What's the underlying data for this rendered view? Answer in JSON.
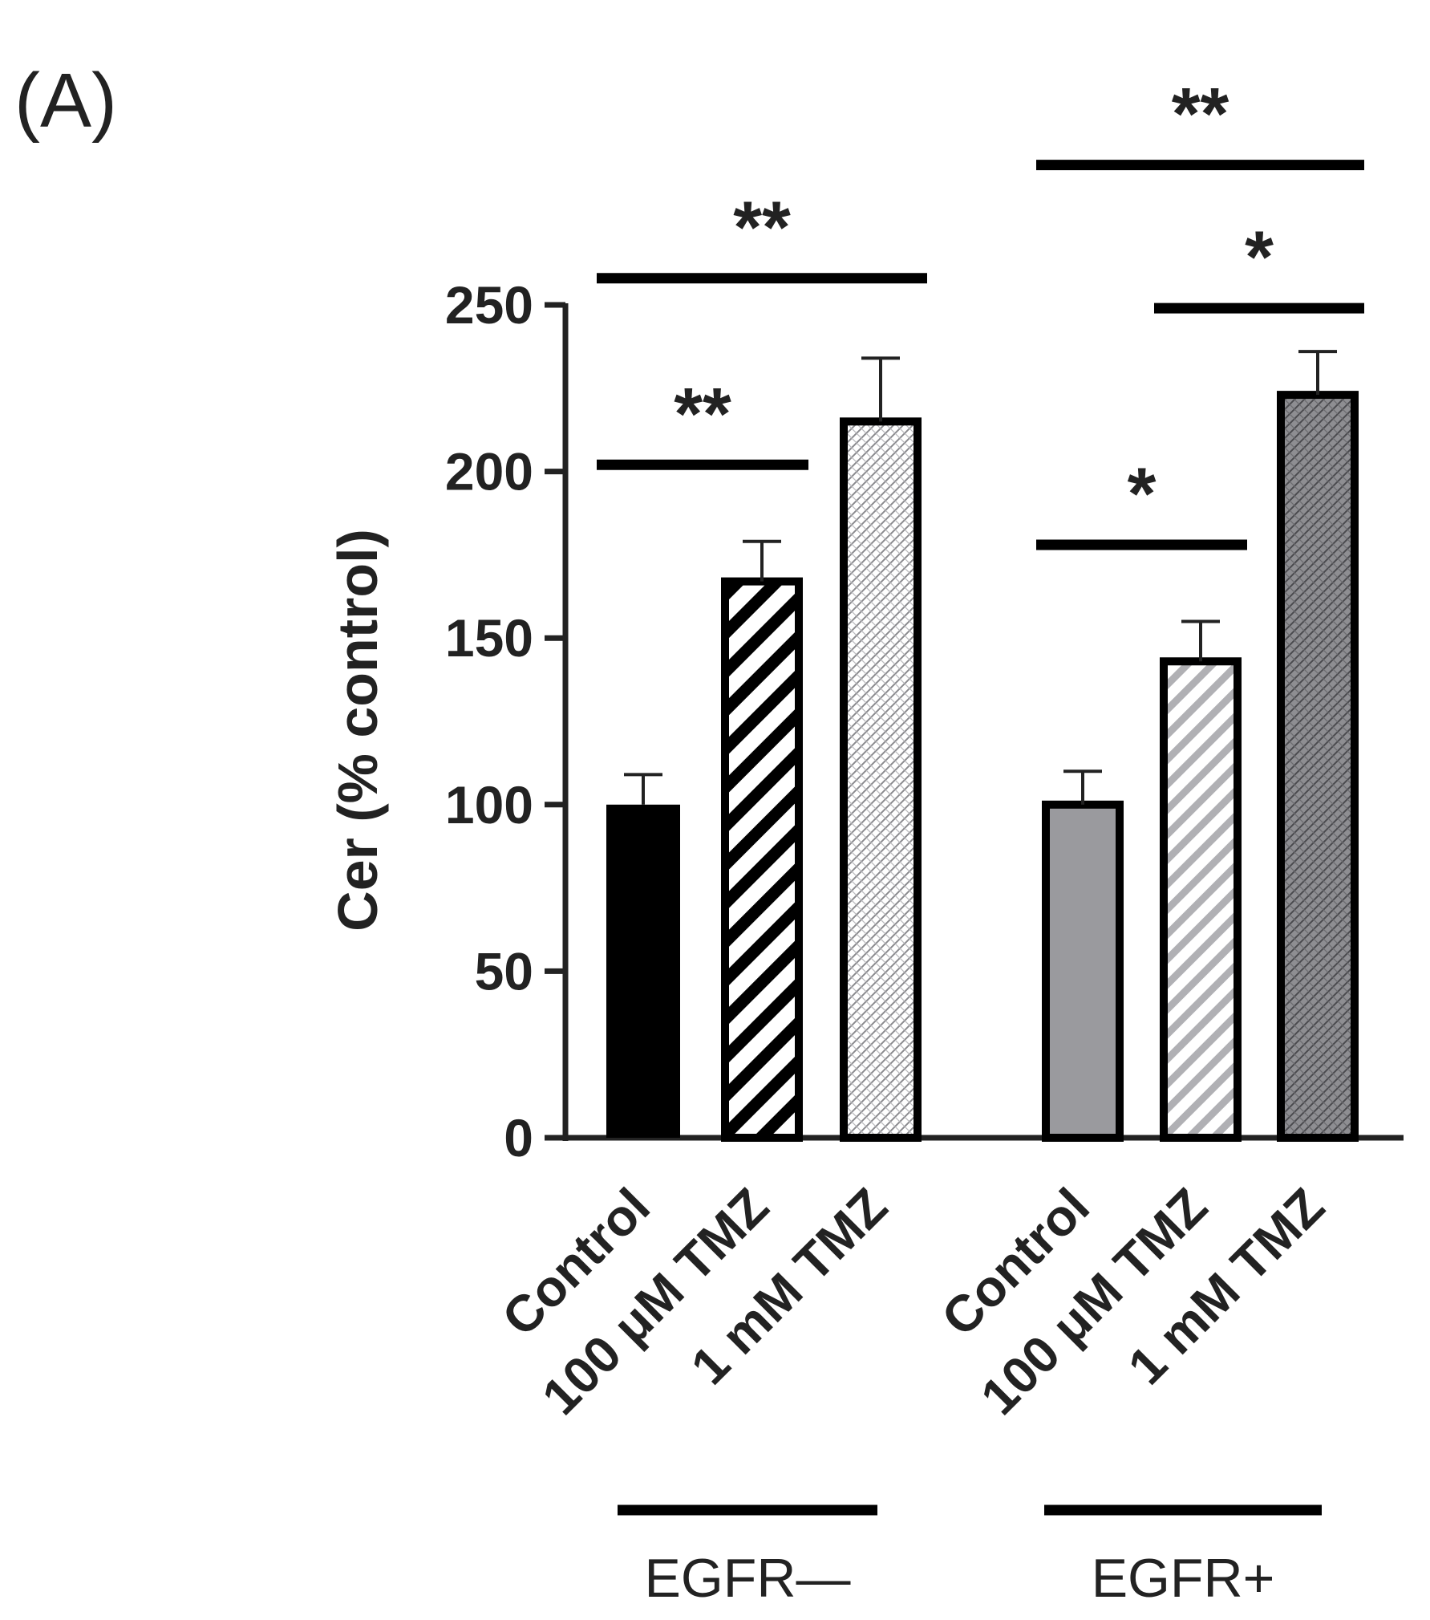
{
  "panel_label": "(A)",
  "chart_data": {
    "type": "bar",
    "ylabel": "Cer (% control)",
    "ylim": [
      0,
      250
    ],
    "yticks": [
      0,
      50,
      100,
      150,
      200,
      250
    ],
    "groups": [
      {
        "name": "EGFR—",
        "bars": [
          {
            "label": "Control",
            "value": 100,
            "error": 9,
            "fill": "solid-black"
          },
          {
            "label": "100 μM TMZ",
            "value": 167,
            "error": 12,
            "fill": "stripe-black-wide"
          },
          {
            "label": "1 mM TMZ",
            "value": 215,
            "error": 19,
            "fill": "crosshatch-light"
          }
        ]
      },
      {
        "name": "EGFR+",
        "bars": [
          {
            "label": "Control",
            "value": 100,
            "error": 10,
            "fill": "solid-gray"
          },
          {
            "label": "100 μM TMZ",
            "value": 143,
            "error": 12,
            "fill": "stripe-gray"
          },
          {
            "label": "1 mM TMZ",
            "value": 223,
            "error": 13,
            "fill": "crosshatch-dark"
          }
        ]
      }
    ],
    "significance": [
      {
        "group": 0,
        "from": 0,
        "to": 1,
        "label": "**",
        "y": 202
      },
      {
        "group": 0,
        "from": 0,
        "to": 2,
        "label": "**",
        "y": 258
      },
      {
        "group": 1,
        "from": 0,
        "to": 1,
        "label": "*",
        "y": 178
      },
      {
        "group": 1,
        "from": 1,
        "to": 2,
        "label": "*",
        "y": 249
      },
      {
        "group": 1,
        "from": 0,
        "to": 2,
        "label": "**",
        "y": 292
      }
    ],
    "colors": {
      "black": "#000000",
      "gray": "#9a9a9e",
      "dark_gray": "#6f6f73",
      "light_gray": "#c4c4c8",
      "axis": "#222222"
    }
  }
}
